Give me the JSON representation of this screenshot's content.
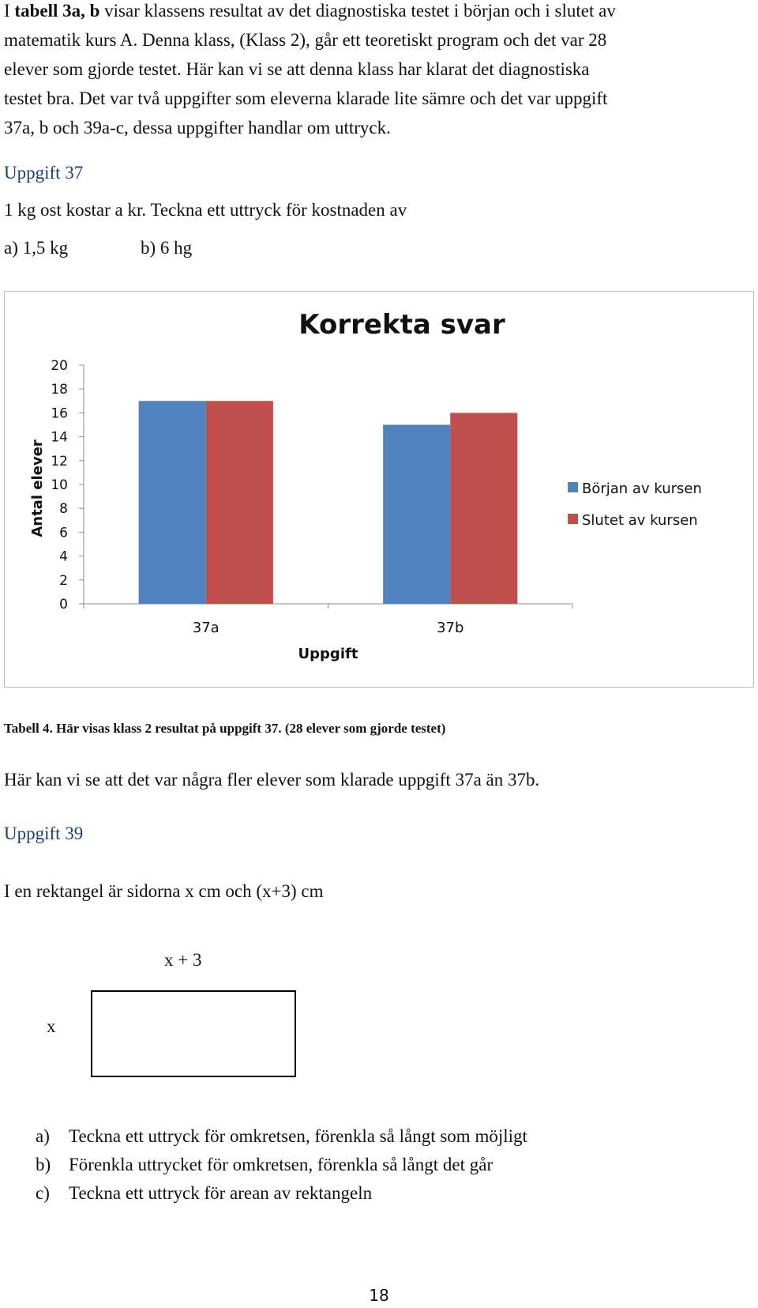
{
  "intro": {
    "line1_prefix": "I ",
    "line1_bold": "tabell 3a, b",
    "line1_suffix": " visar klassens resultat av det diagnostiska testet i början och i slutet av",
    "line2": "matematik kurs A. Denna klass, (Klass 2), går ett teoretiskt program och det var 28",
    "line3": "elever som gjorde testet. Här kan vi se att denna klass har klarat det diagnostiska",
    "line4": "testet bra. Det var två uppgifter som eleverna klarade lite sämre och det var uppgift",
    "line5": "37a, b och 39a-c, dessa uppgifter handlar om uttryck."
  },
  "task37": {
    "heading": "Uppgift 37",
    "prompt": "1 kg ost kostar a kr. Teckna ett uttryck för kostnaden av",
    "part_a": "a) 1,5 kg",
    "part_b": "b)  6 hg"
  },
  "chart_data": {
    "type": "bar",
    "title": "Korrekta svar",
    "xlabel": "Uppgift",
    "ylabel": "Antal elever",
    "categories": [
      "37a",
      "37b"
    ],
    "series": [
      {
        "name": "Början av kursen",
        "values": [
          17,
          15
        ],
        "color": "#4f81bd"
      },
      {
        "name": "Slutet av kursen",
        "values": [
          17,
          16
        ],
        "color": "#c0504d"
      }
    ],
    "ylim": [
      0,
      20
    ],
    "yticks": [
      0,
      2,
      4,
      6,
      8,
      10,
      12,
      14,
      16,
      18,
      20
    ],
    "grid": false,
    "legend": "right"
  },
  "caption": {
    "bold": "Tabell 4. Här visas klass 2 resultat på uppgift 37.",
    "rest": " (28 elever som gjorde testet)"
  },
  "comment": "Här kan vi se att det var några fler elever som klarade uppgift 37a än 37b.",
  "task39": {
    "heading": "Uppgift 39",
    "prompt": "I en rektangel är sidorna x cm och (x+3) cm",
    "top_label": "x + 3",
    "side_label": "x",
    "items": [
      {
        "marker": "a)",
        "text": "Teckna ett uttryck för omkretsen, förenkla så långt som möjligt"
      },
      {
        "marker": "b)",
        "text": "Förenkla uttrycket för omkretsen, förenkla så långt det går"
      },
      {
        "marker": "c)",
        "text": "Teckna ett uttryck för arean av rektangeln"
      }
    ]
  },
  "page_number": "18"
}
